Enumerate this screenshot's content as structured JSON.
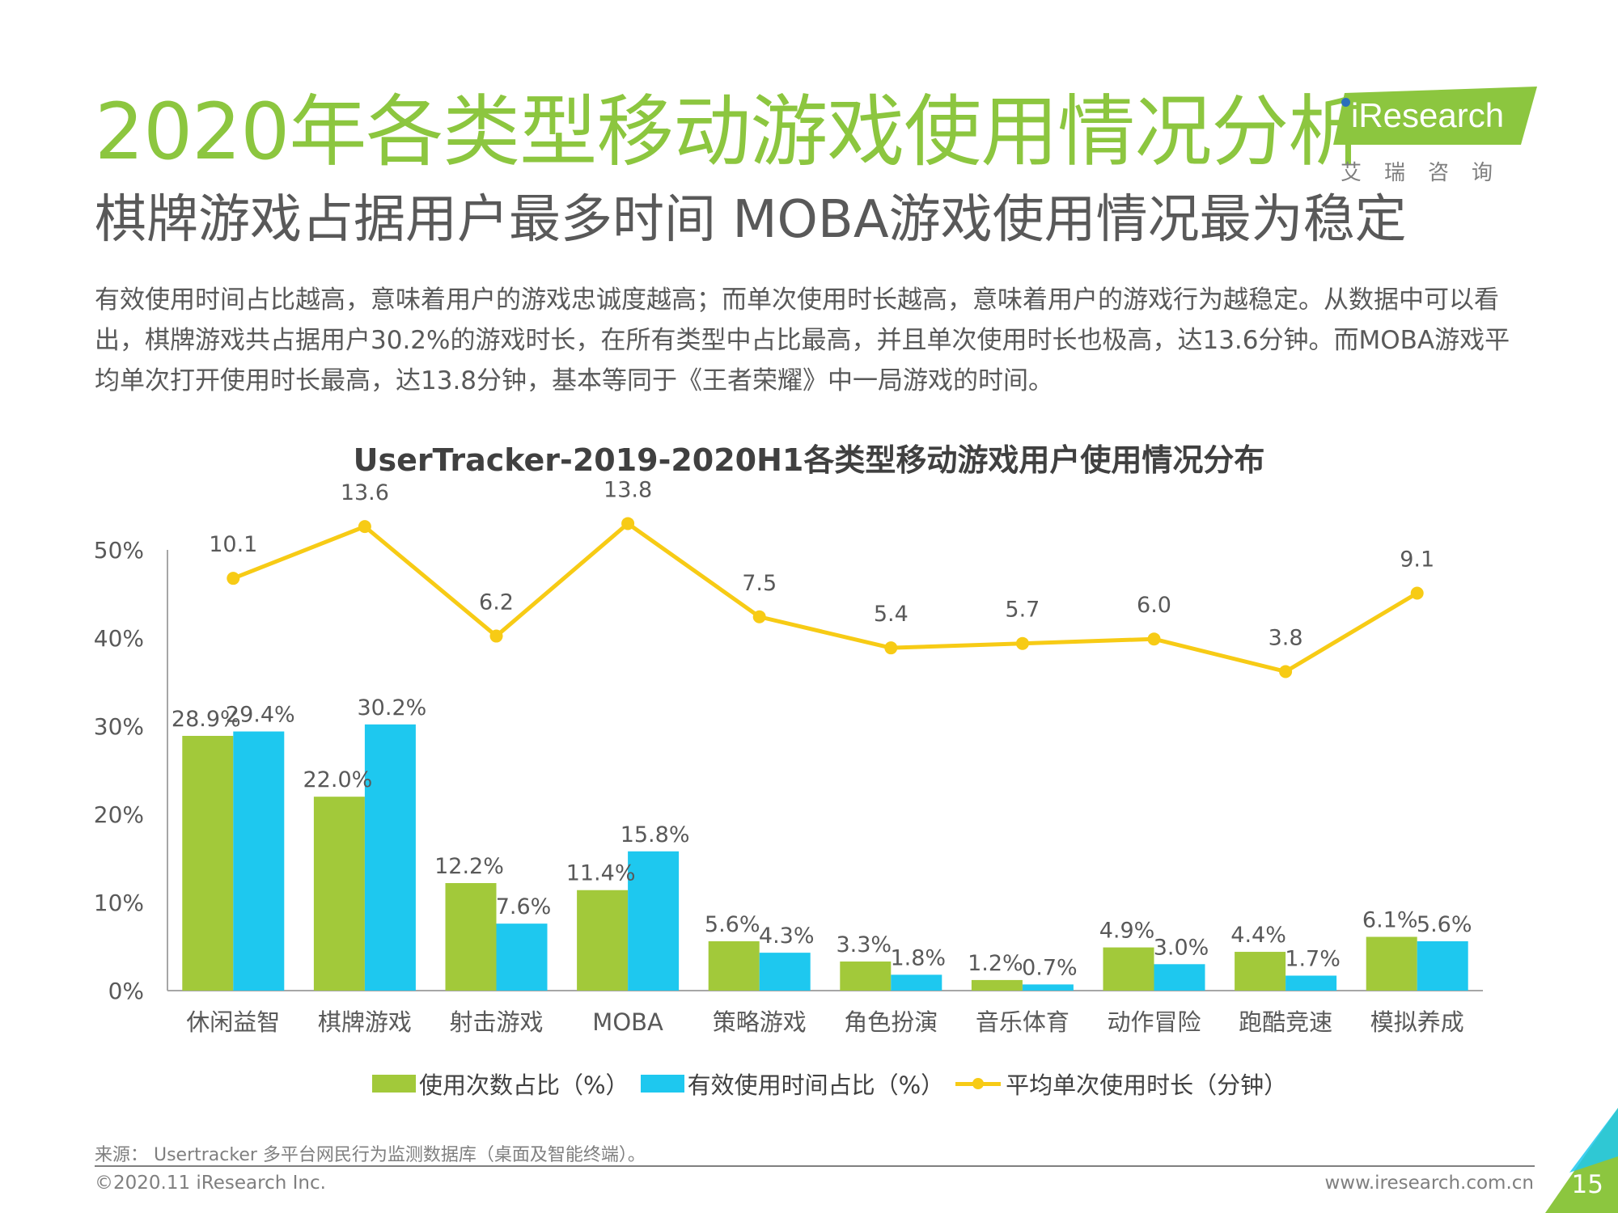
{
  "header": {
    "title": "2020年各类型移动游戏使用情况分析",
    "subtitle": "棋牌游戏占据用户最多时间 MOBA游戏使用情况最为稳定",
    "intro": "有效使用时间占比越高，意味着用户的游戏忠诚度越高；而单次使用时长越高，意味着用户的游戏行为越稳定。从数据中可以看出，棋牌游戏共占据用户30.2%的游戏时长，在所有类型中占比最高，并且单次使用时长也极高，达13.6分钟。而MOBA游戏平均单次打开使用时长最高，达13.8分钟，基本等同于《王者荣耀》中一局游戏的时间。"
  },
  "logo": {
    "text": "iResearch",
    "cn": "艾瑞咨询"
  },
  "colors": {
    "accent": "#8cc63f",
    "usage_bar": "#a2c93a",
    "time_bar": "#1ec8ef",
    "duration_line": "#f7cb15"
  },
  "chart_data": {
    "type": "bar",
    "title": "UserTracker-2019-2020H1各类型移动游戏用户使用情况分布",
    "categories": [
      "休闲益智",
      "棋牌游戏",
      "射击游戏",
      "MOBA",
      "策略游戏",
      "角色扮演",
      "音乐体育",
      "动作冒险",
      "跑酷竞速",
      "模拟养成"
    ],
    "y_ticks": [
      "0%",
      "10%",
      "20%",
      "30%",
      "40%",
      "50%"
    ],
    "ylim": [
      0,
      50
    ],
    "grid": false,
    "legend_position": "bottom",
    "series": [
      {
        "name": "使用次数占比（%）",
        "type": "bar",
        "values": [
          28.9,
          22.0,
          12.2,
          11.4,
          5.6,
          3.3,
          1.2,
          4.9,
          4.4,
          6.1
        ],
        "labels": [
          "28.9%",
          "22.0%",
          "12.2%",
          "11.4%",
          "5.6%",
          "3.3%",
          "1.2%",
          "4.9%",
          "4.4%",
          "6.1%"
        ]
      },
      {
        "name": "有效使用时间占比（%）",
        "type": "bar",
        "values": [
          29.4,
          30.2,
          7.6,
          15.8,
          4.3,
          1.8,
          0.7,
          3.0,
          1.7,
          5.6
        ],
        "labels": [
          "29.4%",
          "30.2%",
          "7.6%",
          "15.8%",
          "4.3%",
          "1.8%",
          "0.7%",
          "3.0%",
          "1.7%",
          "5.6%"
        ]
      },
      {
        "name": "平均单次使用时长（分钟）",
        "type": "line",
        "values": [
          10.1,
          13.6,
          6.2,
          13.8,
          7.5,
          5.4,
          5.7,
          6.0,
          3.8,
          9.1
        ],
        "labels": [
          "10.1",
          "13.6",
          "6.2",
          "13.8",
          "7.5",
          "5.4",
          "5.7",
          "6.0",
          "3.8",
          "9.1"
        ]
      }
    ]
  },
  "footer": {
    "source": "来源： Usertracker 多平台网民行为监测数据库（桌面及智能终端）。",
    "copyright": "©2020.11 iResearch Inc.",
    "website": "www.iresearch.com.cn",
    "page": "15"
  }
}
